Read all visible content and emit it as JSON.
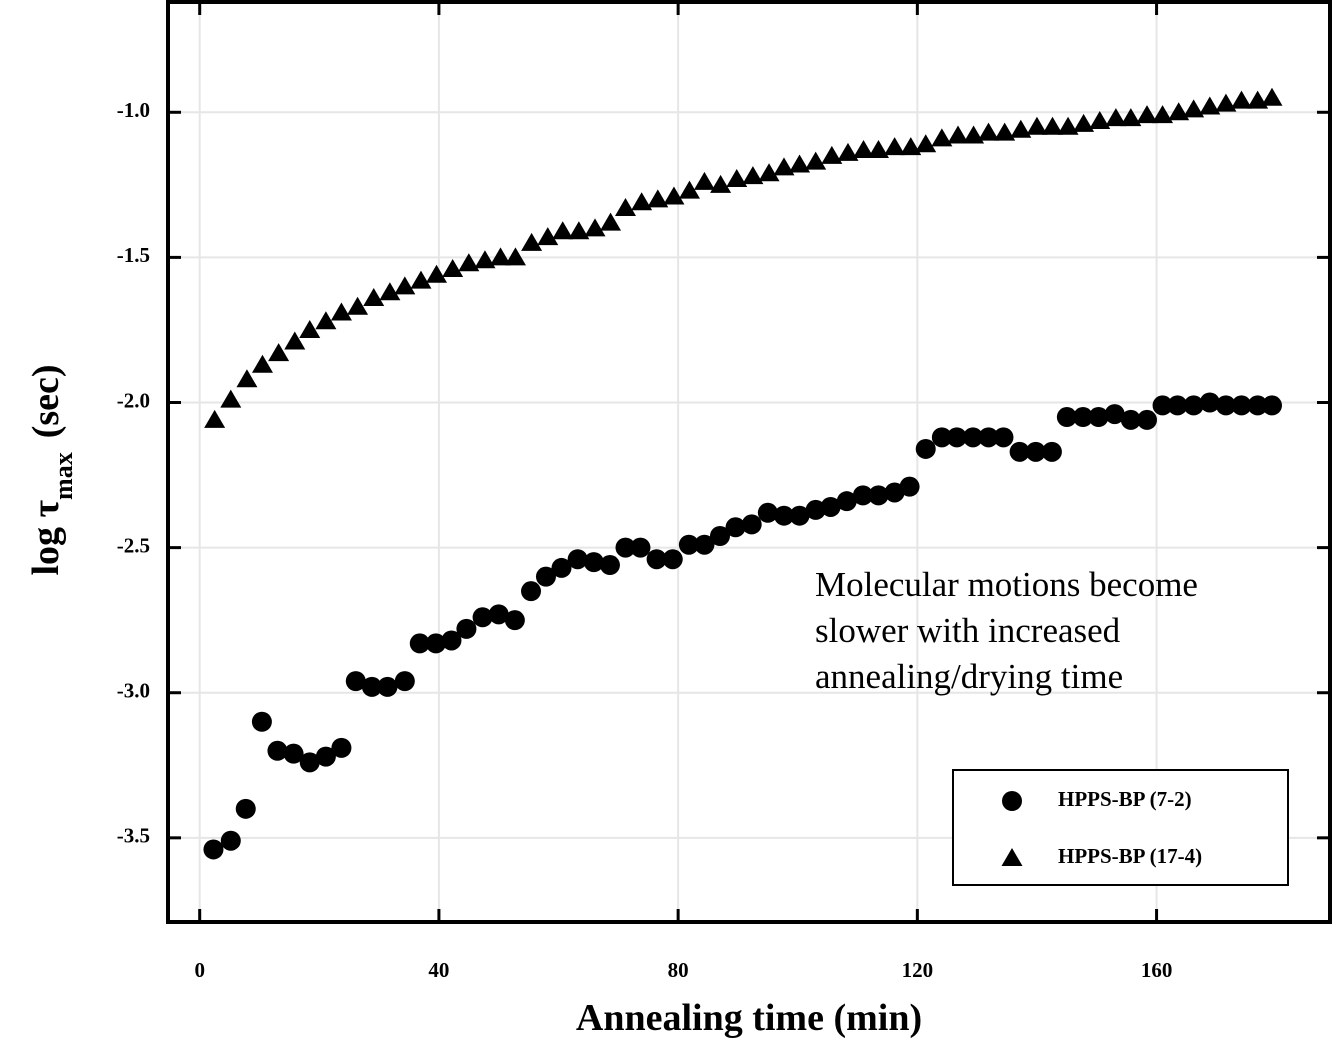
{
  "chart_data": {
    "type": "scatter",
    "xlabel": "Annealing time (min)",
    "ylabel": [
      "log τ",
      "max",
      "(sec)"
    ],
    "annotation": [
      "Molecular motions become",
      "slower with increased",
      "annealing/drying time"
    ],
    "xlim": [
      -5.3,
      189
    ],
    "ylim": [
      -3.79,
      -0.62
    ],
    "xticks": [
      0,
      40,
      80,
      120,
      160
    ],
    "yticks": [
      {
        "value": -1.0,
        "label": "-1.0"
      },
      -1.5,
      {
        "value": -2.0,
        "label": "-2.0"
      },
      -2.5,
      {
        "value": -3.0,
        "label": "-3.0"
      },
      -3.5
    ],
    "grid": true,
    "legend": "lower right",
    "series": [
      {
        "name": "HPPS-BP (7-2)",
        "color": "#000000",
        "marker": "circle",
        "x": [
          2.3,
          5.2,
          7.7,
          10.4,
          13.0,
          15.7,
          18.4,
          21.1,
          23.7,
          26.1,
          28.8,
          31.4,
          34.3,
          36.8,
          39.5,
          42.1,
          44.6,
          47.3,
          50.0,
          52.7,
          55.4,
          57.9,
          60.5,
          63.2,
          65.9,
          68.6,
          71.2,
          73.7,
          76.4,
          79.1,
          81.8,
          84.4,
          87.0,
          89.6,
          92.3,
          95.0,
          97.7,
          100.3,
          103.0,
          105.5,
          108.2,
          110.9,
          113.5,
          116.2,
          118.7,
          121.4,
          124.1,
          126.6,
          129.3,
          131.9,
          134.4,
          137.1,
          139.8,
          142.5,
          145.0,
          147.7,
          150.3,
          153.0,
          155.7,
          158.4,
          161.0,
          163.5,
          166.2,
          168.9,
          171.6,
          174.2,
          176.9,
          179.3
        ],
        "values": [
          -3.54,
          -3.51,
          -3.4,
          -3.1,
          -3.2,
          -3.21,
          -3.24,
          -3.22,
          -3.19,
          -2.96,
          -2.98,
          -2.98,
          -2.96,
          -2.83,
          -2.83,
          -2.82,
          -2.78,
          -2.74,
          -2.73,
          -2.75,
          -2.65,
          -2.6,
          -2.57,
          -2.54,
          -2.55,
          -2.56,
          -2.5,
          -2.5,
          -2.54,
          -2.54,
          -2.49,
          -2.49,
          -2.46,
          -2.43,
          -2.42,
          -2.38,
          -2.39,
          -2.39,
          -2.37,
          -2.36,
          -2.34,
          -2.32,
          -2.32,
          -2.31,
          -2.29,
          -2.16,
          -2.12,
          -2.12,
          -2.12,
          -2.12,
          -2.12,
          -2.17,
          -2.17,
          -2.17,
          -2.05,
          -2.05,
          -2.05,
          -2.04,
          -2.06,
          -2.06,
          -2.01,
          -2.01,
          -2.01,
          -2.0,
          -2.01,
          -2.01,
          -2.01,
          -2.01
        ]
      },
      {
        "name": "HPPS-BP (17-4)",
        "color": "#000000",
        "marker": "triangle",
        "x": [
          2.5,
          5.2,
          7.9,
          10.5,
          13.2,
          15.9,
          18.4,
          21.1,
          23.7,
          26.4,
          29.1,
          31.8,
          34.3,
          37.0,
          39.6,
          42.3,
          45.0,
          47.7,
          50.3,
          52.8,
          55.5,
          58.2,
          60.7,
          63.4,
          66.1,
          68.7,
          71.2,
          73.9,
          76.6,
          79.3,
          81.9,
          84.4,
          87.1,
          89.8,
          92.5,
          95.2,
          97.7,
          100.3,
          103.0,
          105.7,
          108.4,
          111.0,
          113.5,
          116.2,
          118.9,
          121.4,
          124.1,
          126.8,
          129.4,
          131.9,
          134.6,
          137.3,
          140.0,
          142.6,
          145.2,
          147.8,
          150.5,
          153.2,
          155.7,
          158.4,
          161.0,
          163.7,
          166.2,
          168.9,
          171.6,
          174.2,
          176.9,
          179.3
        ],
        "values": [
          -2.06,
          -1.99,
          -1.92,
          -1.87,
          -1.83,
          -1.79,
          -1.75,
          -1.72,
          -1.69,
          -1.67,
          -1.64,
          -1.62,
          -1.6,
          -1.58,
          -1.56,
          -1.54,
          -1.52,
          -1.51,
          -1.5,
          -1.5,
          -1.45,
          -1.43,
          -1.41,
          -1.41,
          -1.4,
          -1.38,
          -1.33,
          -1.31,
          -1.3,
          -1.29,
          -1.27,
          -1.24,
          -1.25,
          -1.23,
          -1.22,
          -1.21,
          -1.19,
          -1.18,
          -1.17,
          -1.15,
          -1.14,
          -1.13,
          -1.13,
          -1.12,
          -1.12,
          -1.11,
          -1.09,
          -1.08,
          -1.08,
          -1.07,
          -1.07,
          -1.06,
          -1.05,
          -1.05,
          -1.05,
          -1.04,
          -1.03,
          -1.02,
          -1.02,
          -1.01,
          -1.01,
          -1.0,
          -0.99,
          -0.98,
          -0.97,
          -0.96,
          -0.96,
          -0.95
        ]
      }
    ]
  }
}
